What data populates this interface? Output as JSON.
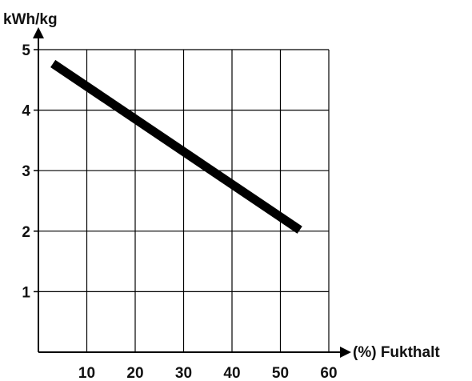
{
  "chart_data": {
    "type": "line",
    "title": "",
    "xlabel": "(%) Fukthalt",
    "ylabel": "kWh/kg",
    "xlim": [
      0,
      60
    ],
    "ylim": [
      0,
      5
    ],
    "x_ticks": [
      10,
      20,
      30,
      40,
      50,
      60
    ],
    "y_ticks": [
      1,
      2,
      3,
      4,
      5
    ],
    "grid": true,
    "series": [
      {
        "x": [
          3,
          54
        ],
        "y": [
          4.77,
          2.02
        ]
      }
    ]
  },
  "colors": {
    "line": "#000000",
    "grid": "#000000",
    "axis": "#000000",
    "background": "#ffffff"
  }
}
